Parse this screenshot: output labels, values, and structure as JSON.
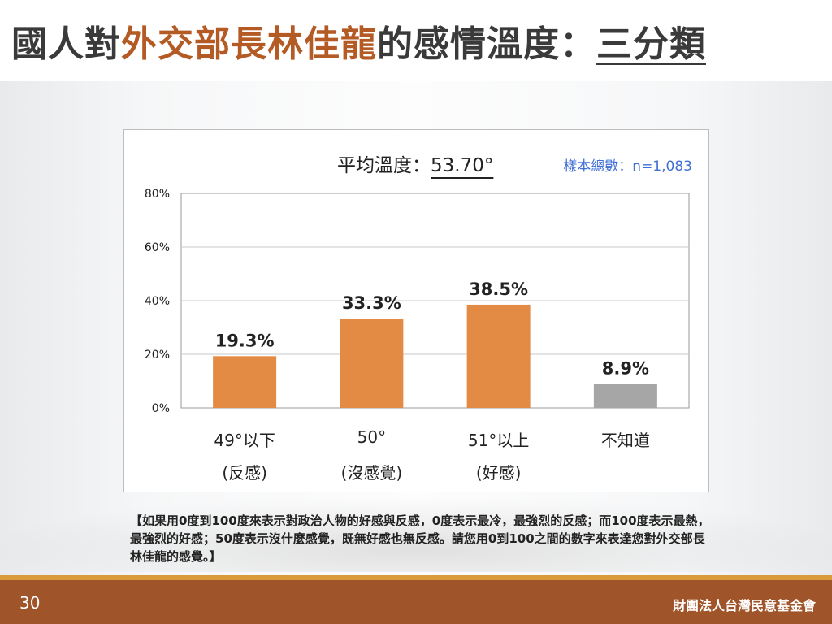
{
  "title": {
    "part1": "國人對",
    "part2": "外交部長林佳龍",
    "part3": "的感情溫度：",
    "part4": "三分類"
  },
  "colors": {
    "accent_title": "#b45a24",
    "bar_main": "#e38b45",
    "bar_unknown": "#a6a6a6",
    "sample_text": "#3f6fd6",
    "footer": "#a0542a",
    "footer_line": "#d99a3c"
  },
  "chart": {
    "avg_label": "平均溫度：",
    "avg_value": "53.70°",
    "sample_label": "樣本總數：n=1,083"
  },
  "chart_data": {
    "type": "bar",
    "categories": [
      "49°以下 (反感)",
      "50° (沒感覺)",
      "51°以上 (好感)",
      "不知道"
    ],
    "category_lines": [
      [
        "49°以下",
        "(反感)"
      ],
      [
        "50°",
        "(沒感覺)"
      ],
      [
        "51°以上",
        "(好感)"
      ],
      [
        "不知道",
        ""
      ]
    ],
    "values": [
      19.3,
      33.3,
      38.5,
      8.9
    ],
    "value_labels": [
      "19.3%",
      "33.3%",
      "38.5%",
      "8.9%"
    ],
    "bar_colors": [
      "#e38b45",
      "#e38b45",
      "#e38b45",
      "#a6a6a6"
    ],
    "yticks": [
      "0%",
      "20%",
      "40%",
      "60%",
      "80%"
    ],
    "ylim": [
      0,
      80
    ],
    "grid": true,
    "title": "",
    "xlabel": "",
    "ylabel": ""
  },
  "note": "【如果用0度到100度來表示對政治人物的好感與反感，0度表示最冷，最強烈的反感；而100度表示最熱，最強烈的好感；50度表示沒什麼感覺，既無好感也無反感。請您用0到100之間的數字來表達您對外交部長林佳龍的感覺。】",
  "footer": {
    "page_number": "30",
    "org": "財團法人台灣民意基金會"
  }
}
